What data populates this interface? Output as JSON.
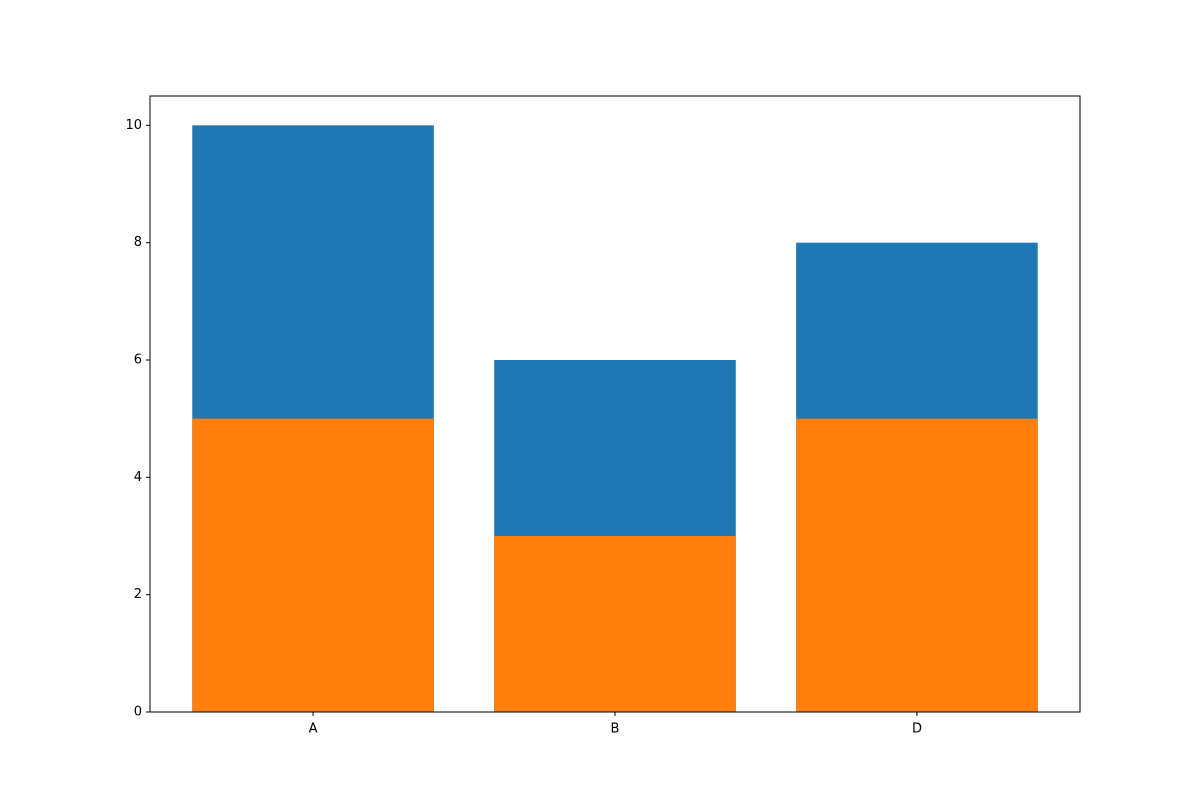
{
  "chart_data": {
    "type": "bar",
    "categories": [
      "A",
      "B",
      "D"
    ],
    "series": [
      {
        "color": "#1f77b4",
        "values": [
          10,
          6,
          8
        ]
      },
      {
        "color": "#ff7f0e",
        "values": [
          5,
          3,
          5
        ]
      }
    ],
    "ylim": [
      0,
      10.5
    ],
    "yticks": [
      0,
      2,
      4,
      6,
      8,
      10
    ]
  }
}
